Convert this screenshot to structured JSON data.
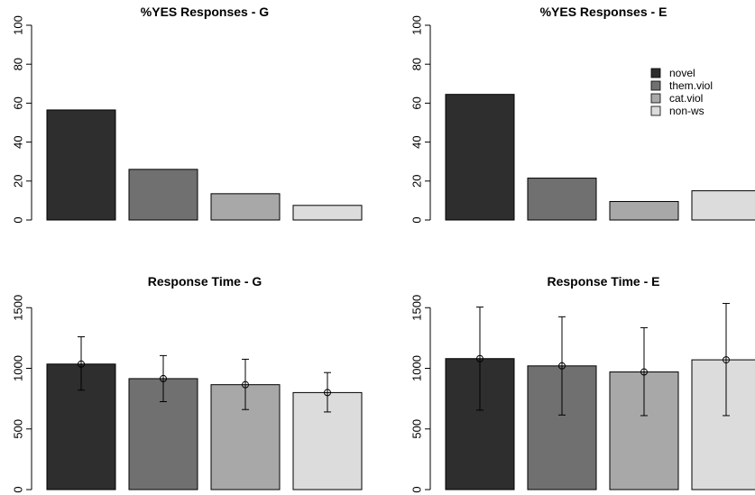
{
  "chart_data": [
    {
      "type": "bar",
      "title": "%YES Responses - G",
      "categories": [
        "novel",
        "them.viol",
        "cat.viol",
        "non-ws"
      ],
      "values": [
        56.5,
        26,
        13.5,
        7.5
      ],
      "ylim": [
        0,
        100
      ],
      "yticks": [
        "0",
        "20",
        "40",
        "60",
        "80",
        "100"
      ],
      "grid": false
    },
    {
      "type": "bar",
      "title": "%YES Responses - E",
      "categories": [
        "novel",
        "them.viol",
        "cat.viol",
        "non-ws"
      ],
      "values": [
        64.5,
        21.5,
        9.5,
        15
      ],
      "ylim": [
        0,
        100
      ],
      "yticks": [
        "0",
        "20",
        "40",
        "60",
        "80",
        "100"
      ],
      "grid": false,
      "legend": {
        "position": "top-right",
        "entries": [
          "novel",
          "them.viol",
          "cat.viol",
          "non-ws"
        ]
      }
    },
    {
      "type": "bar",
      "title": "Response Time - G",
      "categories": [
        "novel",
        "them.viol",
        "cat.viol",
        "non-ws"
      ],
      "values": [
        1035,
        915,
        865,
        800
      ],
      "error_low": [
        820,
        725,
        660,
        640
      ],
      "error_high": [
        1260,
        1105,
        1075,
        965
      ],
      "ylim": [
        0,
        1500
      ],
      "yticks": [
        "0",
        "500",
        "1000",
        "1500"
      ],
      "grid": false
    },
    {
      "type": "bar",
      "title": "Response Time - E",
      "categories": [
        "novel",
        "them.viol",
        "cat.viol",
        "non-ws"
      ],
      "values": [
        1080,
        1020,
        970,
        1070
      ],
      "error_low": [
        655,
        615,
        610,
        610
      ],
      "error_high": [
        1505,
        1425,
        1335,
        1535
      ],
      "ylim": [
        0,
        1500
      ],
      "yticks": [
        "0",
        "500",
        "1000",
        "1500"
      ],
      "grid": false
    }
  ],
  "colors": {
    "novel": "#2e2e2e",
    "them.viol": "#707070",
    "cat.viol": "#a8a8a8",
    "non-ws": "#dcdcdc"
  }
}
